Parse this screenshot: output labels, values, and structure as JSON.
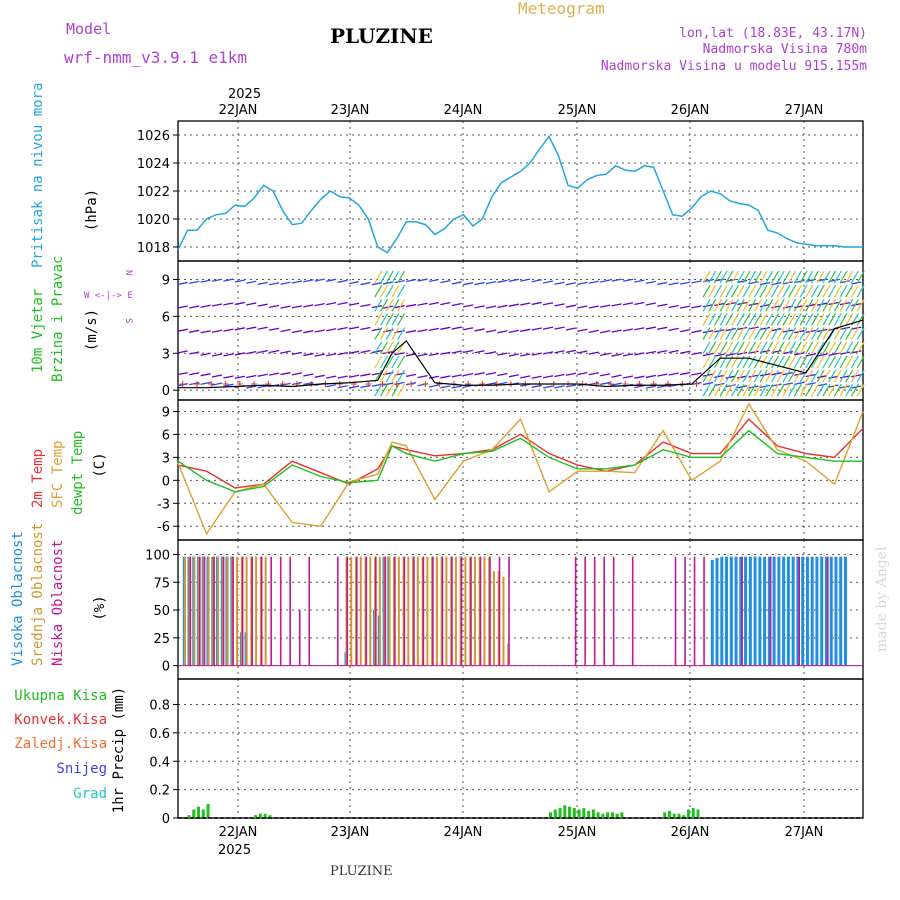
{
  "header": {
    "model_label": "Model",
    "model_name": "wrf-nmm_v3.9.1 e1km",
    "title": "PLUZINE",
    "meteogram_label": "Meteogram",
    "lonlat": "lon,lat (18.83E, 43.17N)",
    "elevation": "Nadmorska Visina 780m",
    "model_elevation": "Nadmorska Visina u modelu 915.155m",
    "footer_title": "PLUZINE",
    "watermark": "made by Angel"
  },
  "time_axis": {
    "year": "2025",
    "days": [
      "22JAN",
      "23JAN",
      "24JAN",
      "25JAN",
      "26JAN",
      "27JAN"
    ],
    "range_hours": [
      0,
      144
    ]
  },
  "colors": {
    "pressure": "#22a6e0",
    "wind_dark": "#6a00c8",
    "wind_blue": "#2b48f0",
    "wind_cyan": "#20c8c0",
    "wind_green": "#30c040",
    "wind_yellow": "#f0c020",
    "temp2m": "#e83030",
    "sfc": "#e0a030",
    "dew": "#20c020",
    "cloud_high": "#2090e0",
    "cloud_mid": "#d09830",
    "cloud_low": "#c01890",
    "precip": "#20c020"
  },
  "panels": {
    "pressure": {
      "label": "Pritisak na nivou mora",
      "unit": "(hPa)",
      "ticks": [
        "1018",
        "1020",
        "1022",
        "1024",
        "1026"
      ]
    },
    "wind": {
      "label1": "10m Vjetar",
      "label2": "Brzina i Pravac",
      "unit": "(m/s)",
      "compass": "W <-|-> E",
      "compass_n": "N",
      "compass_s": "S",
      "ticks": [
        "0",
        "3",
        "6",
        "9"
      ]
    },
    "temp": {
      "label1": "2m Temp",
      "label2": "SFC Temp",
      "label3": "dewpt Temp",
      "unit": "(C)",
      "ticks": [
        "-6",
        "-3",
        "0",
        "3",
        "6",
        "9"
      ]
    },
    "cloud": {
      "label1": "Visoka Oblacnost",
      "label2": "Srednja Oblacnost",
      "label3": "Niska Oblacnost",
      "unit": "(%)",
      "ticks": [
        "0",
        "25",
        "50",
        "75",
        "100"
      ]
    },
    "precip": {
      "labels": [
        "Ukupna Kisa",
        "Konvek.Kisa",
        "Zaledj.Kisa",
        "Snijeg",
        "Grad"
      ],
      "unit": "1hr Precip (mm)",
      "ticks": [
        "0",
        "0.2",
        "0.4",
        "0.6",
        "0.8"
      ]
    }
  },
  "chart_data": [
    {
      "type": "line",
      "title": "Pritisak na nivou mora",
      "ylabel": "(hPa)",
      "ylim": [
        1017,
        1027
      ],
      "x_unit": "hours from 21JAN 12UTC",
      "x": [
        0,
        2,
        4,
        6,
        8,
        10,
        12,
        14,
        16,
        18,
        20,
        22,
        24,
        26,
        28,
        30,
        32,
        34,
        36,
        38,
        40,
        42,
        44,
        46,
        48,
        50,
        52,
        54,
        56,
        58,
        60,
        62,
        64,
        66,
        68,
        70,
        72,
        74,
        76,
        78,
        80,
        82,
        84,
        86,
        88,
        90,
        92,
        94,
        96,
        98,
        100,
        102,
        104,
        106,
        108,
        110,
        112,
        114,
        116,
        118,
        120,
        122,
        124,
        126,
        128,
        130,
        132,
        134,
        136,
        138,
        140,
        142,
        144
      ],
      "values": [
        1017.8,
        1019.2,
        1019.2,
        1020.0,
        1020.3,
        1020.4,
        1021.0,
        1020.9,
        1021.5,
        1022.4,
        1022.0,
        1020.6,
        1019.6,
        1019.7,
        1020.6,
        1021.4,
        1022.0,
        1021.6,
        1021.5,
        1021.0,
        1020.0,
        1018.0,
        1017.6,
        1018.6,
        1019.8,
        1019.8,
        1019.6,
        1018.9,
        1019.3,
        1020.0,
        1020.3,
        1019.5,
        1020.0,
        1021.6,
        1022.6,
        1023.0,
        1023.4,
        1024.0,
        1025.0,
        1025.9,
        1024.5,
        1022.4,
        1022.2,
        1022.8,
        1023.1,
        1023.2,
        1023.8,
        1023.5,
        1023.4,
        1023.8,
        1023.7,
        1022.0,
        1020.3,
        1020.2,
        1020.8,
        1021.6,
        1022.0,
        1021.8,
        1021.3,
        1021.1,
        1021.0,
        1020.6,
        1019.2,
        1019.0,
        1018.6,
        1018.3,
        1018.2,
        1018.1,
        1018.1,
        1018.1,
        1018.0,
        1018.0,
        1018.0
      ],
      "grid": true
    },
    {
      "type": "line",
      "title": "10m Vjetar Brzina i Pravac",
      "ylabel": "(m/s)",
      "ylim": [
        -0.8,
        10.5
      ],
      "x": [
        0,
        6,
        12,
        18,
        24,
        30,
        36,
        42,
        45,
        48,
        54,
        60,
        66,
        72,
        78,
        84,
        90,
        96,
        102,
        108,
        114,
        120,
        126,
        132,
        138,
        144
      ],
      "series": [
        {
          "values": [
            0.2,
            0.2,
            0.3,
            0.4,
            0.3,
            0.5,
            0.6,
            0.8,
            3.0,
            4.0,
            0.6,
            0.4,
            0.4,
            0.5,
            0.5,
            0.5,
            0.3,
            0.4,
            0.4,
            0.5,
            2.6,
            2.6,
            2.0,
            1.4,
            5.0,
            5.7
          ]
        }
      ],
      "grid": true
    },
    {
      "type": "line",
      "title": "2m Temp / SFC Temp / dewpt Temp",
      "ylabel": "(C)",
      "ylim": [
        -7.8,
        10.5
      ],
      "x": [
        0,
        6,
        12,
        18,
        24,
        30,
        36,
        42,
        45,
        48,
        54,
        60,
        66,
        72,
        78,
        84,
        90,
        96,
        102,
        108,
        114,
        120,
        126,
        132,
        138,
        144
      ],
      "series": [
        {
          "name": "2m Temp",
          "values": [
            2.0,
            1.2,
            -1.0,
            -0.5,
            2.5,
            1.0,
            -0.5,
            1.5,
            4.5,
            4.0,
            3.2,
            3.5,
            4.0,
            6.0,
            3.5,
            2.0,
            1.2,
            2.0,
            5.0,
            3.5,
            3.5,
            8.0,
            4.5,
            3.5,
            3.0,
            6.8
          ]
        },
        {
          "name": "SFC Temp",
          "values": [
            2.3,
            -7.0,
            -1.5,
            -0.5,
            -5.5,
            -6.0,
            -0.2,
            0.8,
            5.0,
            4.5,
            -2.5,
            2.5,
            4.0,
            8.0,
            -1.5,
            1.2,
            1.2,
            1.0,
            6.5,
            0.0,
            2.5,
            10.0,
            4.0,
            2.5,
            -0.5,
            9.0
          ]
        },
        {
          "name": "dewpt Temp",
          "values": [
            2.5,
            0.0,
            -1.5,
            -0.8,
            2.0,
            0.5,
            -0.3,
            0.0,
            4.5,
            3.5,
            2.5,
            3.5,
            3.8,
            5.5,
            3.0,
            1.5,
            1.5,
            2.0,
            4.0,
            3.0,
            3.0,
            6.5,
            3.5,
            3.0,
            2.5,
            2.5
          ]
        }
      ],
      "grid": true
    },
    {
      "type": "bar",
      "title": "Visoka / Srednja / Niska Oblacnost",
      "ylabel": "(%)",
      "ylim": [
        0,
        100
      ],
      "series": [
        {
          "name": "Visoka Oblacnost",
          "x": [
            1,
            2,
            3,
            4,
            5,
            6,
            7,
            8,
            9,
            10,
            11,
            13,
            14,
            35,
            41,
            42,
            43,
            44,
            112,
            113,
            114,
            115,
            116,
            117,
            118,
            119,
            120,
            121,
            122,
            123,
            124,
            125,
            126,
            127,
            128,
            129,
            130,
            131,
            132,
            133,
            134,
            135,
            136,
            137,
            138,
            139,
            140
          ],
          "values": [
            98,
            98,
            98,
            98,
            98,
            98,
            98,
            98,
            98,
            98,
            98,
            30,
            30,
            12,
            50,
            45,
            98,
            98,
            95,
            97,
            98,
            98,
            98,
            98,
            98,
            98,
            98,
            98,
            98,
            98,
            98,
            98,
            98,
            98,
            98,
            98,
            98,
            98,
            98,
            98,
            98,
            98,
            98,
            98,
            98,
            98,
            98
          ]
        },
        {
          "name": "Srednja Oblacnost",
          "x": [
            1,
            2,
            3,
            4,
            5,
            6,
            7,
            8,
            9,
            10,
            11,
            12,
            13,
            14,
            15,
            16,
            17,
            18,
            35,
            36,
            37,
            38,
            39,
            40,
            41,
            42,
            43,
            44,
            45,
            46,
            47,
            48,
            49,
            50,
            51,
            52,
            53,
            54,
            55,
            56,
            57,
            58,
            59,
            60,
            61,
            62,
            63,
            64,
            65,
            66,
            67,
            68,
            69
          ],
          "values": [
            98,
            98,
            98,
            98,
            98,
            98,
            98,
            98,
            98,
            98,
            98,
            98,
            98,
            98,
            98,
            98,
            98,
            98,
            98,
            98,
            98,
            98,
            98,
            98,
            98,
            98,
            98,
            98,
            98,
            98,
            98,
            98,
            98,
            98,
            98,
            98,
            98,
            98,
            98,
            98,
            98,
            98,
            98,
            98,
            98,
            98,
            98,
            98,
            98,
            85,
            85,
            80,
            20
          ]
        },
        {
          "name": "Niska Oblacnost",
          "x": [
            2,
            4,
            5,
            7,
            9,
            11,
            13,
            15,
            17,
            19,
            21,
            23,
            25,
            27,
            33,
            35,
            37,
            39,
            41,
            43,
            45,
            47,
            49,
            51,
            53,
            55,
            57,
            59,
            61,
            63,
            65,
            67,
            69,
            83,
            85,
            87,
            89,
            91,
            95,
            104,
            106,
            108,
            110,
            118,
            124,
            130,
            136
          ],
          "values": [
            98,
            98,
            98,
            98,
            98,
            98,
            98,
            98,
            98,
            98,
            98,
            98,
            50,
            98,
            98,
            98,
            98,
            98,
            98,
            98,
            98,
            98,
            98,
            98,
            98,
            98,
            98,
            98,
            98,
            98,
            98,
            98,
            98,
            98,
            98,
            98,
            98,
            98,
            98,
            98,
            98,
            98,
            98,
            98,
            98,
            98,
            98
          ]
        }
      ],
      "grid": true
    },
    {
      "type": "bar",
      "title": "1hr Precip",
      "ylabel": "1hr Precip (mm)",
      "ylim": [
        0,
        1.0
      ],
      "series": [
        {
          "name": "Ukupna Kisa",
          "x": [
            2,
            3,
            4,
            5,
            6,
            16,
            17,
            18,
            19,
            78,
            79,
            80,
            81,
            82,
            83,
            84,
            85,
            86,
            87,
            88,
            89,
            90,
            91,
            92,
            93,
            102,
            103,
            104,
            105,
            106,
            107,
            108,
            109
          ],
          "values": [
            0.02,
            0.06,
            0.08,
            0.06,
            0.1,
            0.02,
            0.03,
            0.03,
            0.02,
            0.04,
            0.06,
            0.07,
            0.09,
            0.08,
            0.07,
            0.06,
            0.07,
            0.05,
            0.06,
            0.04,
            0.03,
            0.04,
            0.04,
            0.03,
            0.04,
            0.04,
            0.05,
            0.03,
            0.03,
            0.02,
            0.06,
            0.07,
            0.06
          ]
        },
        {
          "name": "Konvek.Kisa",
          "x": [],
          "values": []
        },
        {
          "name": "Zaledj.Kisa",
          "x": [],
          "values": []
        },
        {
          "name": "Snijeg",
          "x": [],
          "values": []
        },
        {
          "name": "Grad",
          "x": [],
          "values": []
        }
      ],
      "grid": true
    }
  ]
}
